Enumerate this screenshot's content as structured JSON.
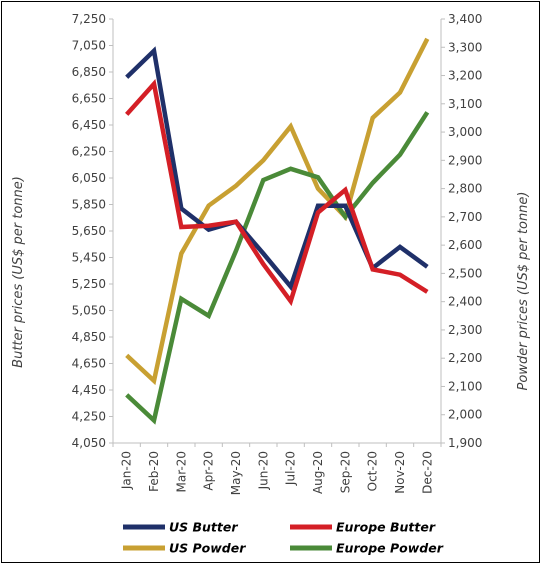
{
  "chart_data": {
    "type": "line",
    "categories": [
      "Jan-20",
      "Feb-20",
      "Mar-20",
      "Apr-20",
      "May-20",
      "Jun-20",
      "Jul-20",
      "Aug-20",
      "Sep-20",
      "Oct-20",
      "Nov-20",
      "Dec-20"
    ],
    "y_left": {
      "label": "Butter prices (US$ per tonne)",
      "ylim": [
        4050,
        7250
      ],
      "ticks": [
        "4,050",
        "4,250",
        "4,450",
        "4,650",
        "4,850",
        "5,050",
        "5,250",
        "5,450",
        "5,650",
        "5,850",
        "6,050",
        "6,250",
        "6,450",
        "6,650",
        "6,850",
        "7,050",
        "7,250"
      ],
      "tick_values": [
        4050,
        4250,
        4450,
        4650,
        4850,
        5050,
        5250,
        5450,
        5650,
        5850,
        6050,
        6250,
        6450,
        6650,
        6850,
        7050,
        7250
      ]
    },
    "y_right": {
      "label": "Powder prices (US$ per tonne)",
      "ylim": [
        1900,
        3400
      ],
      "ticks": [
        "1,900",
        "2,000",
        "2,100",
        "2,200",
        "2,300",
        "2,400",
        "2,500",
        "2,600",
        "2,700",
        "2,800",
        "2,900",
        "3,000",
        "3,100",
        "3,200",
        "3,300",
        "3,400"
      ],
      "tick_values": [
        1900,
        2000,
        2100,
        2200,
        2300,
        2400,
        2500,
        2600,
        2700,
        2800,
        2900,
        3000,
        3100,
        3200,
        3300,
        3400
      ]
    },
    "series": [
      {
        "name": "US Butter",
        "axis": "left",
        "color": "#1f3069",
        "values": [
          6810,
          7010,
          5820,
          5660,
          5720,
          5480,
          5230,
          5840,
          5840,
          5370,
          5530,
          5380
        ]
      },
      {
        "name": "Europe Butter",
        "axis": "left",
        "color": "#d41f26",
        "values": [
          6530,
          6760,
          5680,
          5690,
          5720,
          5400,
          5120,
          5790,
          5960,
          5360,
          5320,
          5190
        ]
      },
      {
        "name": "US Powder",
        "axis": "right",
        "color": "#c8a032",
        "values": [
          2210,
          2120,
          2570,
          2740,
          2810,
          2900,
          3020,
          2800,
          2700,
          3050,
          3140,
          3330
        ]
      },
      {
        "name": "Europe Powder",
        "axis": "right",
        "color": "#4a8a38",
        "values": [
          2070,
          1980,
          2410,
          2350,
          2580,
          2830,
          2870,
          2840,
          2700,
          2820,
          2920,
          3070
        ]
      }
    ],
    "legend_order": [
      "US Butter",
      "Europe Butter",
      "US Powder",
      "Europe Powder"
    ],
    "legend_position": "bottom",
    "grid": false
  }
}
